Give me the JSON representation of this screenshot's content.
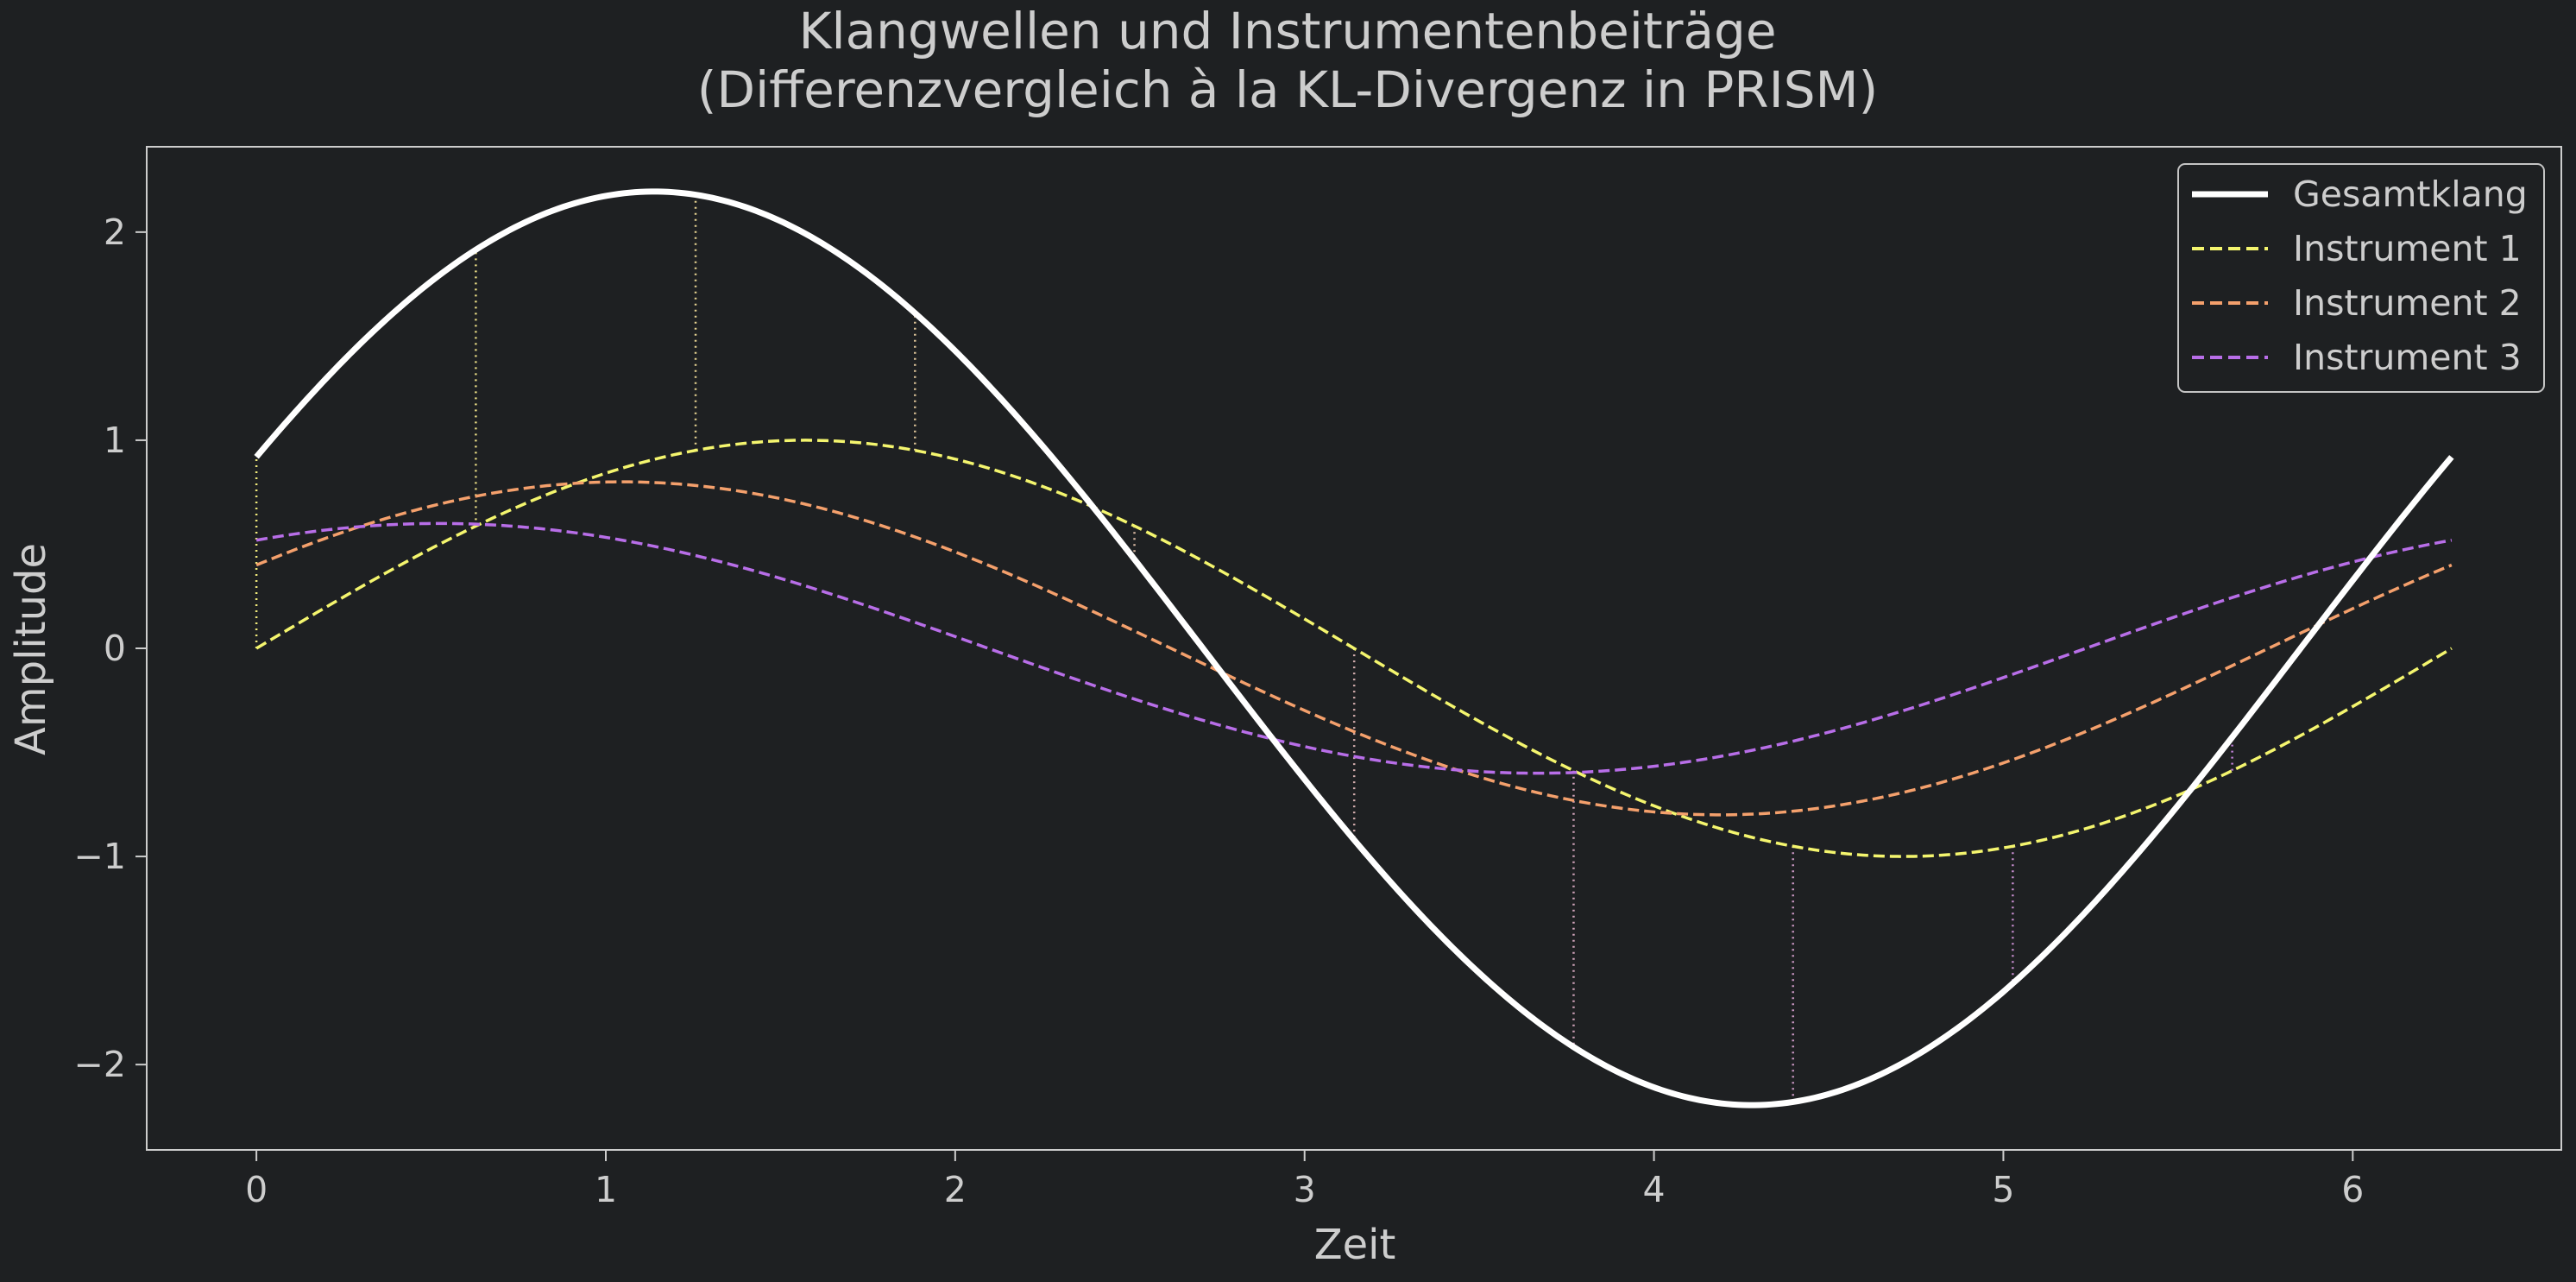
{
  "chart_data": {
    "type": "line",
    "title": [
      "Klangwellen und Instrumentenbeiträge",
      "(Differenzvergleich à la KL-Divergenz in PRISM)"
    ],
    "xlabel": "Zeit",
    "ylabel": "Amplitude",
    "xlim": [
      -0.314,
      6.597
    ],
    "ylim": [
      -2.41,
      2.41
    ],
    "xticks": [
      0,
      1,
      2,
      3,
      4,
      5,
      6
    ],
    "xtick_labels": [
      "0",
      "1",
      "2",
      "3",
      "4",
      "5",
      "6"
    ],
    "yticks": [
      -2,
      -1,
      0,
      1,
      2
    ],
    "ytick_labels": [
      "−2",
      "−1",
      "0",
      "1",
      "2"
    ],
    "grid": false,
    "legend_position": "top-right",
    "x_range": [
      0,
      6.283
    ],
    "series": [
      {
        "name": "Instrument 1",
        "formula": "1.0 * sin(t)",
        "amplitude": 1.0,
        "phase": 0.0,
        "color": "#f4f56e",
        "style": "dashed"
      },
      {
        "name": "Instrument 2",
        "formula": "0.8 * sin(t + 0.524)",
        "amplitude": 0.8,
        "phase": 0.524,
        "color": "#f4a06c",
        "style": "dashed"
      },
      {
        "name": "Instrument 3",
        "formula": "0.6 * sin(t + 1.047)",
        "amplitude": 0.6,
        "phase": 1.047,
        "color": "#b86ee8",
        "style": "dashed"
      },
      {
        "name": "Gesamtklang",
        "formula": "sum of instruments",
        "color": "#ffffff",
        "style": "solid"
      }
    ],
    "legend_order": [
      "Gesamtklang",
      "Instrument 1",
      "Instrument 2",
      "Instrument 3"
    ],
    "difference_markers": {
      "description": "dotted vertical lines from Instrument 1 to Gesamtklang",
      "x": [
        0,
        0.628,
        1.257,
        1.885,
        2.513,
        3.142,
        3.77,
        4.398,
        5.027,
        5.655
      ],
      "color_gradient": [
        "#f4f56e",
        "#b86ee8"
      ]
    },
    "colors": {
      "background": "#1e2022",
      "axes": "#cdcdcd",
      "text": "#cdcdcd"
    }
  }
}
